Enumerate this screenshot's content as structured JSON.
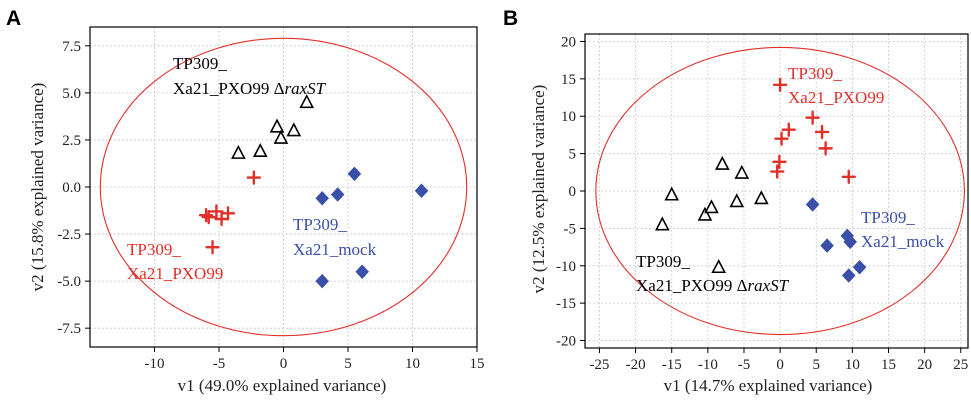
{
  "colors": {
    "black_group": "#000000",
    "red_group": "#e0302a",
    "blue_group": "#3a50a8",
    "ellipse": "#e0302a",
    "grid": "#b8b8b8"
  },
  "chart_data": [
    {
      "type": "scatter",
      "panel_label": "A",
      "xlabel": "v1  (49.0% explained variance)",
      "ylabel": "v2  (15.8% explained variance)",
      "xlim": [
        -15,
        15
      ],
      "ylim": [
        -8.5,
        8.5
      ],
      "xticks": [
        -10,
        -5,
        0,
        5,
        10,
        15
      ],
      "yticks": [
        7.5,
        5.0,
        2.5,
        0.0,
        -2.5,
        -5.0,
        -7.5
      ],
      "ytick_labels": [
        "7.5",
        "5.0",
        "2.5",
        "0.0",
        "-2.5",
        "-5.0",
        "-7.5"
      ],
      "grid": true,
      "ellipse": {
        "cx": 0,
        "cy": 0,
        "rx": 14.2,
        "ry": 7.9
      },
      "series": [
        {
          "marker": "triangle",
          "color": "#000000",
          "x": [
            -3.5,
            -1.8,
            -0.5,
            0.8,
            -0.2,
            1.8
          ],
          "y": [
            1.8,
            1.9,
            3.2,
            3.0,
            2.6,
            4.5
          ]
        },
        {
          "marker": "plus",
          "color": "#e0302a",
          "x": [
            -2.3,
            -6.0,
            -5.2,
            -4.8,
            -4.3,
            -5.8,
            -5.5
          ],
          "y": [
            0.5,
            -1.5,
            -1.3,
            -1.7,
            -1.4,
            -1.6,
            -3.2
          ]
        },
        {
          "marker": "diamond",
          "color": "#3a50a8",
          "x": [
            3.0,
            4.2,
            5.5,
            10.7,
            6.1,
            3.0
          ],
          "y": [
            -0.6,
            -0.4,
            0.7,
            -0.2,
            -4.5,
            -5.0
          ]
        }
      ],
      "annotations": [
        {
          "lines": [
            "TP309_",
            "Xa21_PXO99 Δ",
            "raxST"
          ],
          "color": "#000000"
        },
        {
          "lines": [
            "TP309_",
            "Xa21_PXO99"
          ],
          "color": "#e0302a"
        },
        {
          "lines": [
            "TP309_",
            "Xa21_mock"
          ],
          "color": "#3a50a8"
        }
      ]
    },
    {
      "type": "scatter",
      "panel_label": "B",
      "xlabel": "v1  (14.7% explained variance)",
      "ylabel": "v2  (12.5% explained variance)",
      "xlim": [
        -27,
        26
      ],
      "ylim": [
        -21,
        21
      ],
      "xticks": [
        -25,
        -20,
        -15,
        -10,
        -5,
        0,
        5,
        10,
        15,
        20,
        25
      ],
      "yticks": [
        20,
        15,
        10,
        5,
        0,
        -5,
        -10,
        -15,
        -20
      ],
      "ytick_labels": [
        "20",
        "15",
        "10",
        "5",
        "0",
        "-5",
        "-10",
        "-15",
        "-20"
      ],
      "grid": true,
      "ellipse": {
        "cx": 0,
        "cy": 0,
        "rx": 25.5,
        "ry": 19.2
      },
      "series": [
        {
          "marker": "triangle",
          "color": "#000000",
          "x": [
            -16.3,
            -15.0,
            -10.4,
            -9.5,
            -8.0,
            -6.0,
            -5.3,
            -2.6,
            -8.5
          ],
          "y": [
            -4.5,
            -0.5,
            -3.2,
            -2.2,
            3.6,
            -1.4,
            2.4,
            -1.0,
            -10.2
          ]
        },
        {
          "marker": "plus",
          "color": "#e0302a",
          "x": [
            0.0,
            0.2,
            1.2,
            4.5,
            5.8,
            6.3,
            9.5,
            -0.1,
            -0.4
          ],
          "y": [
            14.2,
            7.0,
            8.2,
            9.8,
            7.9,
            5.7,
            1.9,
            3.9,
            2.6
          ]
        },
        {
          "marker": "diamond",
          "color": "#3a50a8",
          "x": [
            4.5,
            6.5,
            9.3,
            9.7,
            11.0,
            9.5
          ],
          "y": [
            -1.8,
            -7.3,
            -6.0,
            -6.8,
            -10.2,
            -11.3
          ]
        }
      ],
      "annotations": [
        {
          "lines": [
            "TP309_",
            "Xa21_PXO99"
          ],
          "color": "#e0302a"
        },
        {
          "lines": [
            "TP309_",
            "Xa21_mock"
          ],
          "color": "#3a50a8"
        },
        {
          "lines": [
            "TP309_",
            "Xa21_PXO99 Δ",
            "raxST"
          ],
          "color": "#000000"
        }
      ]
    }
  ]
}
